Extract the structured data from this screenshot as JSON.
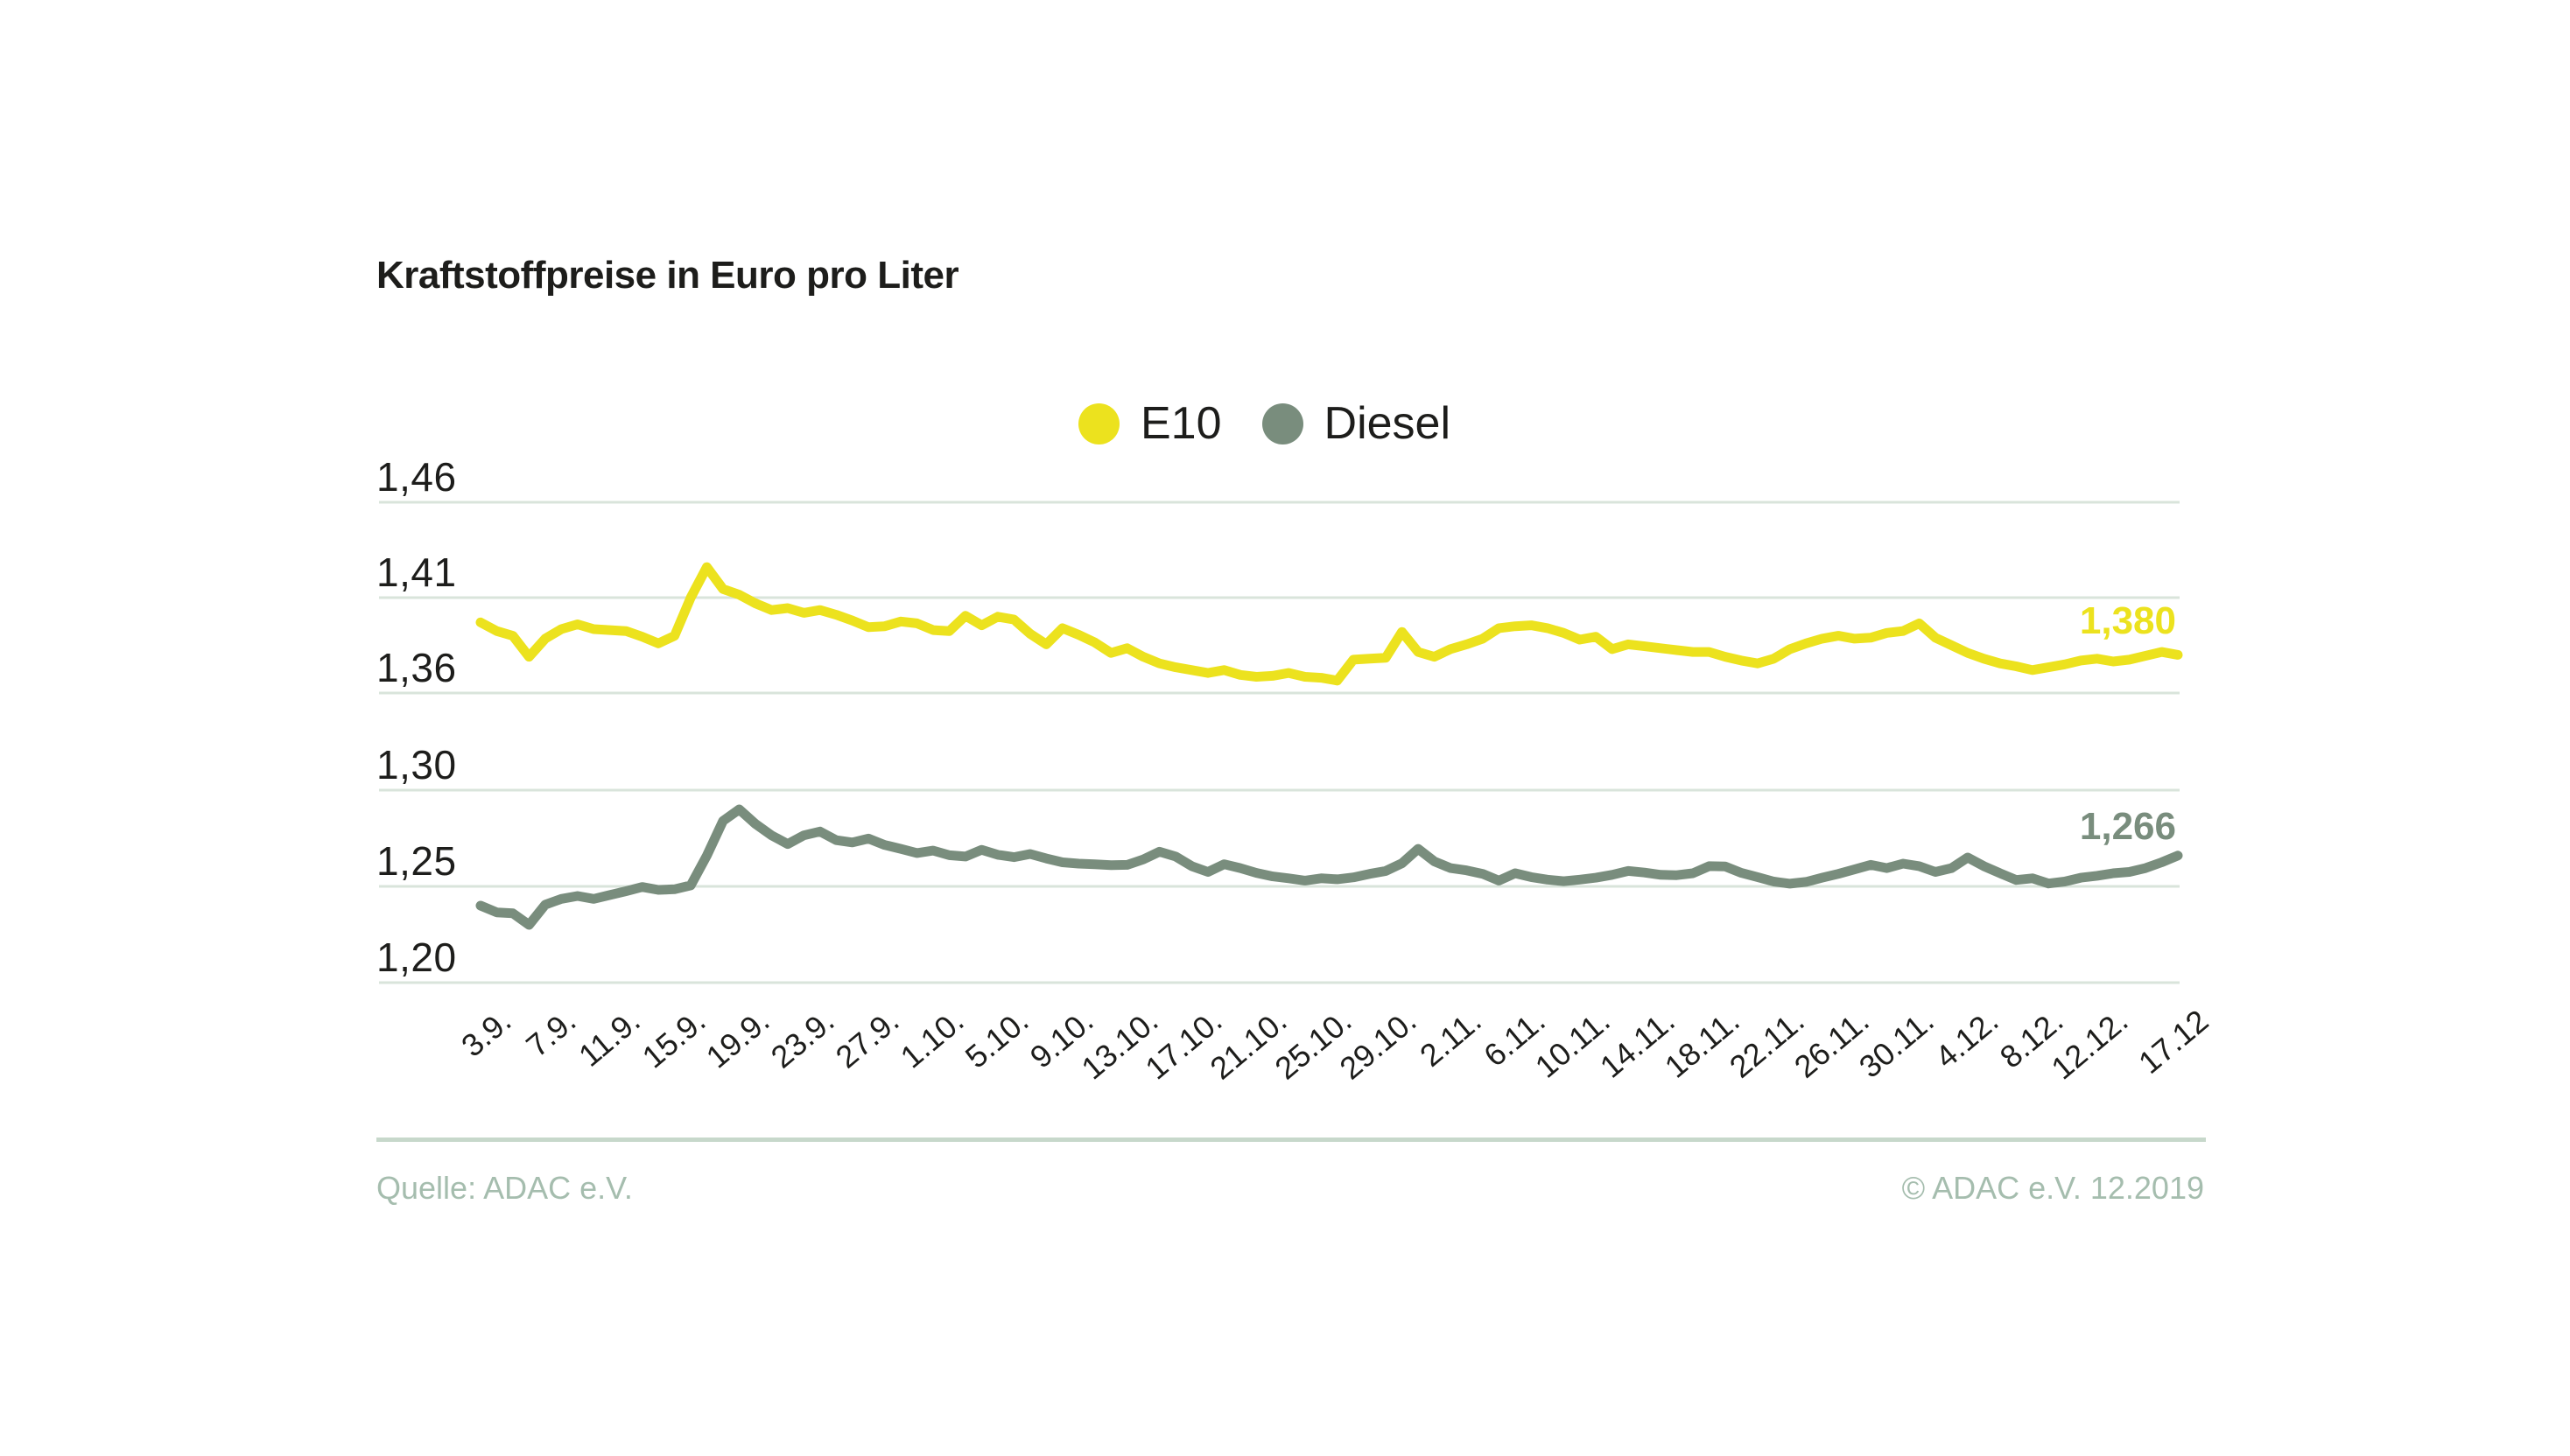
{
  "title": "Kraftstoffpreise in Euro pro Liter",
  "legend": [
    {
      "label": "E10",
      "color": "#ece21e"
    },
    {
      "label": "Diesel",
      "color": "#798d7d"
    }
  ],
  "footer": {
    "source": "Quelle: ADAC e.V.",
    "copyright": "© ADAC e.V. 12.2019"
  },
  "colors": {
    "e10_yellow": "#ece21e",
    "diesel_green": "#798d7d",
    "gridline": "#d9e4db",
    "divider": "#c7d8cb",
    "muted_text": "#a5bdae",
    "ink": "#1d1d1b",
    "background": "#ffffff"
  },
  "chart_data": {
    "type": "line",
    "title": "Kraftstoffpreise in Euro pro Liter",
    "ylabel": "Euro pro Liter",
    "xlabel": "",
    "grid": "horizontal-only",
    "legend_position": "top-center",
    "x_resolution": "daily",
    "x_tick_labels": [
      "3.9.",
      "7.9.",
      "11.9.",
      "15.9.",
      "19.9.",
      "23.9.",
      "27.9.",
      "1.10.",
      "5.10.",
      "9.10.",
      "13.10.",
      "17.10.",
      "21.10.",
      "25.10.",
      "29.10.",
      "2.11.",
      "6.11.",
      "10.11.",
      "14.11.",
      "18.11.",
      "22.11.",
      "26.11.",
      "30.11.",
      "4.12.",
      "8.12.",
      "12.12.",
      "17.12"
    ],
    "x_tick_day_indices": [
      0,
      4,
      8,
      12,
      16,
      20,
      24,
      28,
      32,
      36,
      40,
      44,
      48,
      52,
      56,
      60,
      64,
      68,
      72,
      76,
      80,
      84,
      88,
      92,
      96,
      100,
      105
    ],
    "y_axis": {
      "broken_axis": true,
      "top_ticks": [
        {
          "label": "1,46",
          "value": 1.46
        },
        {
          "label": "1,41",
          "value": 1.41
        },
        {
          "label": "1,36",
          "value": 1.36
        }
      ],
      "bottom_ticks": [
        {
          "label": "1,30",
          "value": 1.3
        },
        {
          "label": "1,25",
          "value": 1.25
        },
        {
          "label": "1,20",
          "value": 1.2
        }
      ]
    },
    "panels": [
      {
        "series": "E10",
        "y_range": [
          1.36,
          1.46
        ]
      },
      {
        "series": "Diesel",
        "y_range": [
          1.2,
          1.3
        ]
      }
    ],
    "series": [
      {
        "name": "E10",
        "color": "#ece21e",
        "end_label": "1,380",
        "end_value": 1.38,
        "values": [
          1.397,
          1.3925,
          1.39,
          1.379,
          1.3885,
          1.3935,
          1.396,
          1.3935,
          1.393,
          1.3925,
          1.3895,
          1.386,
          1.39,
          1.41,
          1.426,
          1.4145,
          1.4115,
          1.407,
          1.4035,
          1.4045,
          1.402,
          1.4035,
          1.401,
          1.398,
          1.3945,
          1.395,
          1.3975,
          1.3965,
          1.393,
          1.3925,
          1.4005,
          1.3955,
          1.4,
          1.3985,
          1.391,
          1.3855,
          1.394,
          1.3905,
          1.3865,
          1.381,
          1.3835,
          1.379,
          1.3755,
          1.3735,
          1.372,
          1.3705,
          1.372,
          1.3695,
          1.3685,
          1.369,
          1.3705,
          1.3685,
          1.368,
          1.3665,
          1.3775,
          1.378,
          1.3785,
          1.392,
          1.3815,
          1.379,
          1.383,
          1.3855,
          1.3885,
          1.394,
          1.395,
          1.3955,
          1.394,
          1.3915,
          1.388,
          1.3895,
          1.383,
          1.3855,
          1.3845,
          1.3835,
          1.3825,
          1.3815,
          1.3815,
          1.379,
          1.377,
          1.3755,
          1.378,
          1.383,
          1.386,
          1.3885,
          1.39,
          1.3885,
          1.389,
          1.3915,
          1.3925,
          1.3965,
          1.389,
          1.385,
          1.381,
          1.378,
          1.3755,
          1.374,
          1.372,
          1.3735,
          1.375,
          1.377,
          1.378,
          1.3765,
          1.3775,
          1.3795,
          1.3815,
          1.38
        ]
      },
      {
        "name": "Diesel",
        "color": "#798d7d",
        "end_label": "1,266",
        "end_value": 1.266,
        "values": [
          1.24,
          1.2365,
          1.236,
          1.23,
          1.2405,
          1.2435,
          1.245,
          1.2435,
          1.2455,
          1.2475,
          1.2497,
          1.2482,
          1.2485,
          1.2505,
          1.266,
          1.284,
          1.29,
          1.2825,
          1.2765,
          1.272,
          1.2765,
          1.2785,
          1.274,
          1.2728,
          1.2748,
          1.2715,
          1.2695,
          1.2673,
          1.2686,
          1.2662,
          1.2655,
          1.269,
          1.2664,
          1.2652,
          1.2668,
          1.2645,
          1.2625,
          1.2618,
          1.2615,
          1.261,
          1.2612,
          1.264,
          1.268,
          1.2655,
          1.2605,
          1.2575,
          1.2615,
          1.2595,
          1.257,
          1.2552,
          1.2542,
          1.253,
          1.2542,
          1.2537,
          1.2547,
          1.2565,
          1.258,
          1.262,
          1.2695,
          1.263,
          1.2595,
          1.2583,
          1.2565,
          1.253,
          1.2568,
          1.2548,
          1.2535,
          1.2527,
          1.2535,
          1.2545,
          1.256,
          1.258,
          1.2572,
          1.256,
          1.2558,
          1.2568,
          1.2605,
          1.2603,
          1.257,
          1.2548,
          1.2525,
          1.2514,
          1.2523,
          1.2545,
          1.2565,
          1.2588,
          1.2612,
          1.2595,
          1.2618,
          1.2605,
          1.2575,
          1.2595,
          1.265,
          1.2605,
          1.2568,
          1.2533,
          1.2542,
          1.2515,
          1.2525,
          1.2545,
          1.2555,
          1.2568,
          1.2575,
          1.2595,
          1.2625,
          1.266
        ]
      }
    ]
  }
}
